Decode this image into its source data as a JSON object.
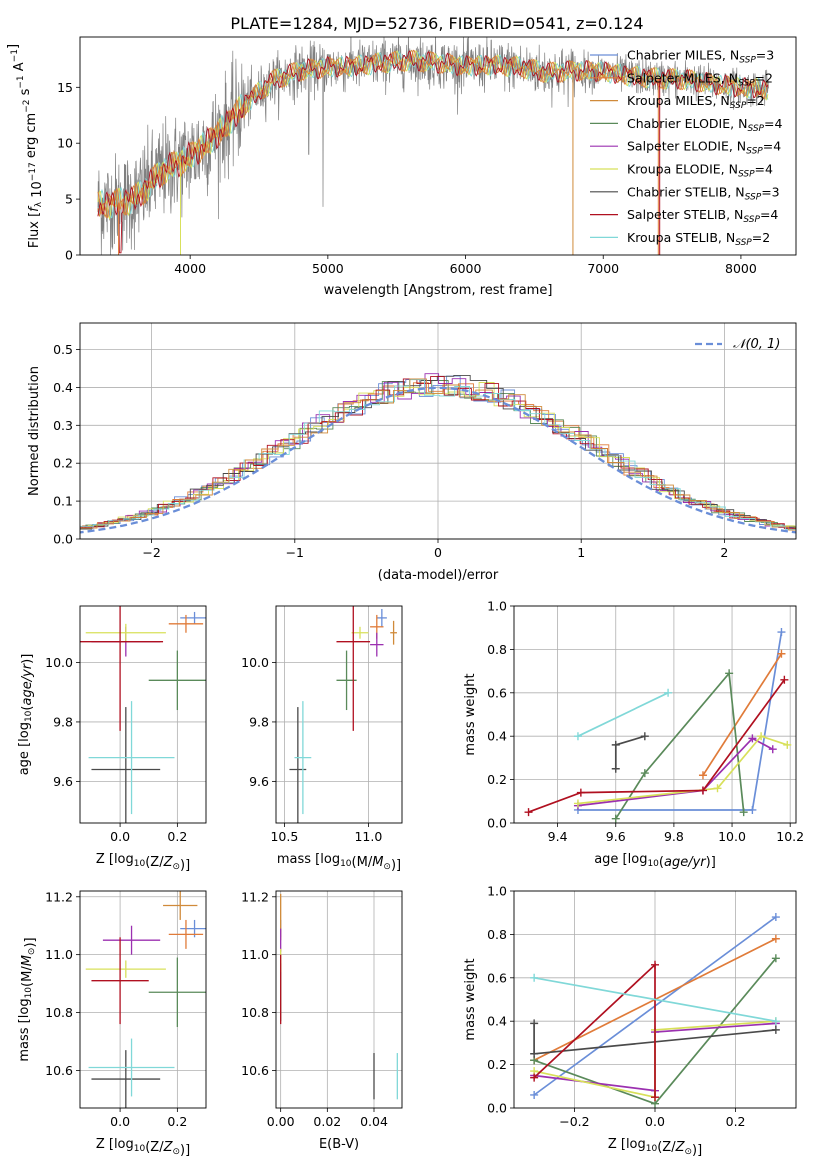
{
  "figure_title": "PLATE=1284, MJD=52736, FIBERID=0541, z=0.124",
  "models": [
    {
      "name": "Chabrier MILES",
      "nssp": "3",
      "color": "#6a8ed8"
    },
    {
      "name": "Salpeter MILES",
      "nssp": "2",
      "color": "#e07b39"
    },
    {
      "name": "Kroupa MILES",
      "nssp": "2",
      "color": "#d08a3a"
    },
    {
      "name": "Chabrier ELODIE",
      "nssp": "4",
      "color": "#5a8a5a"
    },
    {
      "name": "Salpeter ELODIE",
      "nssp": "4",
      "color": "#9b30b0"
    },
    {
      "name": "Kroupa ELODIE",
      "nssp": "4",
      "color": "#d8e05a"
    },
    {
      "name": "Chabrier STELIB",
      "nssp": "3",
      "color": "#4a4a4a"
    },
    {
      "name": "Salpeter STELIB",
      "nssp": "4",
      "color": "#b01020"
    },
    {
      "name": "Kroupa STELIB",
      "nssp": "2",
      "color": "#80d8d8"
    }
  ],
  "nssp_label": "N",
  "nssp_sub": "SSP",
  "chart_data": [
    {
      "id": "spectrum",
      "type": "line",
      "xlabel": "wavelength [Angstrom, rest frame]",
      "ylabel": "Flux [f_λ 10^-17 erg cm^-2 s^-1 A^-1]",
      "xticks": [
        4000,
        5000,
        6000,
        7000,
        8000
      ],
      "yticks": [
        0,
        5,
        10,
        15
      ],
      "xlim": [
        3200,
        8400
      ],
      "ylim": [
        0,
        19.5
      ],
      "continuum_x": [
        3400,
        3600,
        3800,
        4000,
        4200,
        4400,
        4600,
        4800,
        5000,
        5200,
        5400,
        5600,
        5800,
        6000,
        6200,
        6400,
        6600,
        6800,
        7000,
        7200,
        7400,
        7600,
        7800,
        8000,
        8200
      ],
      "continuum_y": [
        4.5,
        5.0,
        7.5,
        8.8,
        10.8,
        13.5,
        15.6,
        16.5,
        16.8,
        16.9,
        17.2,
        17.4,
        17.2,
        16.9,
        17.0,
        16.8,
        16.3,
        16.5,
        16.4,
        16.0,
        15.8,
        15.7,
        15.3,
        15.0,
        14.8
      ]
    },
    {
      "id": "residuals",
      "type": "step",
      "xlabel": "(data-model)/error",
      "ylabel": "Normed distribution",
      "xticks": [
        -2,
        -1,
        0,
        1,
        2
      ],
      "yticks": [
        0.0,
        0.1,
        0.2,
        0.3,
        0.4,
        0.5
      ],
      "xlim": [
        -2.5,
        2.5
      ],
      "ylim": [
        0,
        0.57
      ],
      "legend": "𝒩(0, 1)",
      "gaussian_sigma": 1.0
    },
    {
      "id": "age_vs_Z",
      "type": "errorbar",
      "xlabel": "Z [log10(Z/Z⊙)]",
      "ylabel": "age  [log10(age/yr)]",
      "xticks": [
        0.0,
        0.2
      ],
      "yticks": [
        9.6,
        9.8,
        10.0
      ],
      "xlim": [
        -0.14,
        0.3
      ],
      "ylim": [
        9.46,
        10.19
      ],
      "points": [
        {
          "m": 0,
          "x": 0.26,
          "y": 10.15,
          "xe": 0.05,
          "ye": 0.02
        },
        {
          "m": 1,
          "x": 0.23,
          "y": 10.13,
          "xe": 0.06,
          "ye": 0.03
        },
        {
          "m": 3,
          "x": 0.2,
          "y": 9.94,
          "xe": 0.1,
          "ye": 0.1
        },
        {
          "m": 4,
          "x": 0.02,
          "y": 10.07,
          "xe": 0.12,
          "ye": 0.05
        },
        {
          "m": 5,
          "x": 0.02,
          "y": 10.1,
          "xe": 0.14,
          "ye": 0.03
        },
        {
          "m": 6,
          "x": 0.02,
          "y": 9.64,
          "xe": 0.12,
          "ye": 0.21
        },
        {
          "m": 7,
          "x": 0.0,
          "y": 10.07,
          "xe": 0.15,
          "ye": 0.3
        },
        {
          "m": 8,
          "x": 0.04,
          "y": 9.68,
          "xe": 0.15,
          "ye": 0.19
        }
      ]
    },
    {
      "id": "age_vs_mass",
      "type": "errorbar",
      "xlabel": "mass [log10(M/M⊙)]",
      "ylabel": "",
      "xticks": [
        10.5,
        11.0
      ],
      "yticks": [
        9.6,
        9.8,
        10.0
      ],
      "xlim": [
        10.45,
        11.2
      ],
      "ylim": [
        9.46,
        10.19
      ],
      "points": [
        {
          "m": 0,
          "x": 11.08,
          "y": 10.15,
          "xe": 0.03,
          "ye": 0.03
        },
        {
          "m": 1,
          "x": 11.05,
          "y": 10.12,
          "xe": 0.04,
          "ye": 0.04
        },
        {
          "m": 2,
          "x": 11.15,
          "y": 10.1,
          "xe": 0.02,
          "ye": 0.04
        },
        {
          "m": 3,
          "x": 10.87,
          "y": 9.94,
          "xe": 0.06,
          "ye": 0.1
        },
        {
          "m": 4,
          "x": 11.05,
          "y": 10.06,
          "xe": 0.04,
          "ye": 0.04
        },
        {
          "m": 5,
          "x": 10.95,
          "y": 10.1,
          "xe": 0.05,
          "ye": 0.02
        },
        {
          "m": 6,
          "x": 10.58,
          "y": 9.64,
          "xe": 0.05,
          "ye": 0.21
        },
        {
          "m": 7,
          "x": 10.91,
          "y": 10.07,
          "xe": 0.1,
          "ye": 0.3
        },
        {
          "m": 8,
          "x": 10.61,
          "y": 9.68,
          "xe": 0.05,
          "ye": 0.19
        }
      ]
    },
    {
      "id": "mass_weight_vs_age",
      "type": "line",
      "xlabel": "age  [log10(age/yr)]",
      "ylabel": "mass weight",
      "xticks": [
        9.4,
        9.6,
        9.8,
        10.0,
        10.2
      ],
      "yticks": [
        0.0,
        0.2,
        0.4,
        0.6,
        0.8,
        1.0
      ],
      "xlim": [
        9.25,
        10.22
      ],
      "ylim": [
        0,
        1
      ],
      "series": [
        {
          "m": 0,
          "x": [
            9.47,
            10.07,
            10.17
          ],
          "y": [
            0.06,
            0.06,
            0.88
          ]
        },
        {
          "m": 1,
          "x": [
            9.9,
            10.17
          ],
          "y": [
            0.22,
            0.78
          ]
        },
        {
          "m": 3,
          "x": [
            9.6,
            9.7,
            9.99,
            10.04
          ],
          "y": [
            0.02,
            0.23,
            0.69,
            0.05
          ]
        },
        {
          "m": 4,
          "x": [
            9.47,
            9.9,
            10.07,
            10.14
          ],
          "y": [
            0.08,
            0.15,
            0.39,
            0.34
          ]
        },
        {
          "m": 5,
          "x": [
            9.47,
            9.95,
            10.1,
            10.19
          ],
          "y": [
            0.09,
            0.16,
            0.4,
            0.36
          ]
        },
        {
          "m": 6,
          "x": [
            9.6,
            9.6,
            9.7
          ],
          "y": [
            0.25,
            0.36,
            0.4
          ]
        },
        {
          "m": 7,
          "x": [
            9.3,
            9.48,
            9.9,
            10.18
          ],
          "y": [
            0.05,
            0.14,
            0.15,
            0.66
          ]
        },
        {
          "m": 8,
          "x": [
            9.47,
            9.78
          ],
          "y": [
            0.4,
            0.6
          ]
        }
      ]
    },
    {
      "id": "mass_vs_Z",
      "type": "errorbar",
      "xlabel": "Z [log10(Z/Z⊙)]",
      "ylabel": "mass [log10(M/M⊙)]",
      "xticks": [
        0.0,
        0.2
      ],
      "yticks": [
        10.6,
        10.8,
        11.0,
        11.2
      ],
      "xlim": [
        -0.14,
        0.3
      ],
      "ylim": [
        10.47,
        11.22
      ],
      "points": [
        {
          "m": 0,
          "x": 0.26,
          "y": 11.09,
          "xe": 0.05,
          "ye": 0.03
        },
        {
          "m": 1,
          "x": 0.23,
          "y": 11.07,
          "xe": 0.06,
          "ye": 0.05
        },
        {
          "m": 2,
          "x": 0.21,
          "y": 11.17,
          "xe": 0.06,
          "ye": 0.05
        },
        {
          "m": 3,
          "x": 0.2,
          "y": 10.87,
          "xe": 0.1,
          "ye": 0.12
        },
        {
          "m": 4,
          "x": 0.04,
          "y": 11.05,
          "xe": 0.1,
          "ye": 0.05
        },
        {
          "m": 5,
          "x": 0.02,
          "y": 10.95,
          "xe": 0.14,
          "ye": 0.03
        },
        {
          "m": 6,
          "x": 0.02,
          "y": 10.57,
          "xe": 0.12,
          "ye": 0.1
        },
        {
          "m": 7,
          "x": 0.0,
          "y": 10.91,
          "xe": 0.1,
          "ye": 0.15
        },
        {
          "m": 8,
          "x": 0.04,
          "y": 10.61,
          "xe": 0.15,
          "ye": 0.1
        }
      ]
    },
    {
      "id": "mass_vs_ebv",
      "type": "errorbar",
      "xlabel": "E(B-V)",
      "ylabel": "",
      "xticks": [
        0.0,
        0.02,
        0.04
      ],
      "yticks": [
        10.6,
        10.8,
        11.0,
        11.2
      ],
      "xlim": [
        -0.002,
        0.052
      ],
      "ylim": [
        10.47,
        11.22
      ],
      "points": [
        {
          "m": 0,
          "x": 0.0,
          "y": 11.09,
          "xe": 0,
          "ye": 0.03
        },
        {
          "m": 2,
          "x": 0.0,
          "y": 11.13,
          "xe": 0,
          "ye": 0.08
        },
        {
          "m": 3,
          "x": 0.0,
          "y": 10.87,
          "xe": 0,
          "ye": 0.1
        },
        {
          "m": 4,
          "x": 0.0,
          "y": 11.05,
          "xe": 0,
          "ye": 0.04
        },
        {
          "m": 5,
          "x": 0.0,
          "y": 10.98,
          "xe": 0,
          "ye": 0.04
        },
        {
          "m": 6,
          "x": 0.04,
          "y": 10.58,
          "xe": 0,
          "ye": 0.08
        },
        {
          "m": 7,
          "x": 0.0,
          "y": 10.88,
          "xe": 0,
          "ye": 0.12
        },
        {
          "m": 8,
          "x": 0.05,
          "y": 10.58,
          "xe": 0,
          "ye": 0.08
        }
      ]
    },
    {
      "id": "mass_weight_vs_Z",
      "type": "line",
      "xlabel": "Z [log10(Z/Z⊙)]",
      "ylabel": "mass weight",
      "xticks": [
        -0.2,
        0.0,
        0.2
      ],
      "yticks": [
        0.0,
        0.2,
        0.4,
        0.6,
        0.8,
        1.0
      ],
      "xlim": [
        -0.35,
        0.35
      ],
      "ylim": [
        0,
        1
      ],
      "series": [
        {
          "m": 0,
          "x": [
            -0.3,
            0.3
          ],
          "y": [
            0.06,
            0.88
          ]
        },
        {
          "m": 1,
          "x": [
            -0.3,
            0.3
          ],
          "y": [
            0.22,
            0.78
          ]
        },
        {
          "m": 3,
          "x": [
            -0.3,
            0.0,
            0.3
          ],
          "y": [
            0.22,
            0.02,
            0.69
          ]
        },
        {
          "m": 4,
          "x": [
            -0.3,
            0.0,
            0.0,
            0.3
          ],
          "y": [
            0.15,
            0.08,
            0.35,
            0.39
          ]
        },
        {
          "m": 5,
          "x": [
            -0.3,
            0.0,
            0.0,
            0.3
          ],
          "y": [
            0.17,
            0.05,
            0.36,
            0.4
          ]
        },
        {
          "m": 6,
          "x": [
            -0.3,
            -0.3,
            0.3
          ],
          "y": [
            0.39,
            0.25,
            0.36
          ]
        },
        {
          "m": 7,
          "x": [
            -0.3,
            0.0,
            0.0
          ],
          "y": [
            0.14,
            0.66,
            0.05
          ]
        },
        {
          "m": 8,
          "x": [
            -0.3,
            0.3
          ],
          "y": [
            0.6,
            0.4
          ]
        }
      ]
    }
  ]
}
